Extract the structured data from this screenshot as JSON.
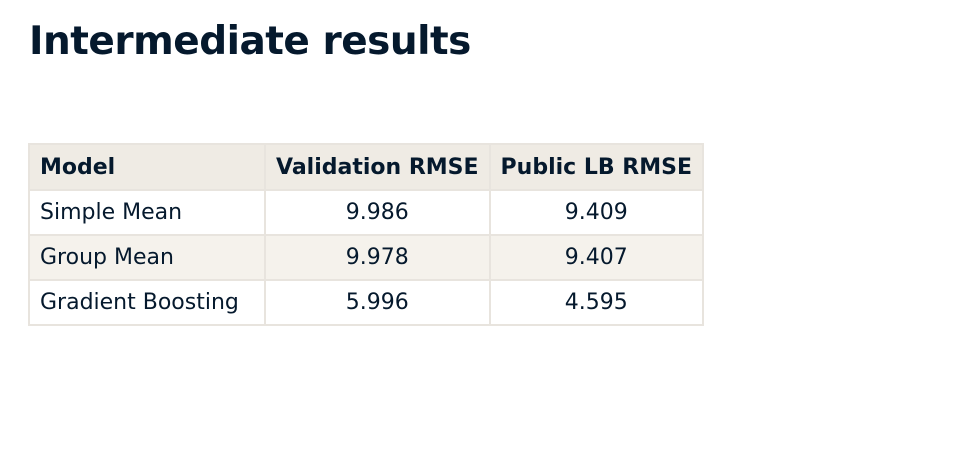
{
  "title": "Intermediate results",
  "table": {
    "headers": [
      "Model",
      "Validation RMSE",
      "Public LB RMSE"
    ],
    "rows": [
      [
        "Simple Mean",
        "9.986",
        "9.409"
      ],
      [
        "Group Mean",
        "9.978",
        "9.407"
      ],
      [
        "Gradient Boosting",
        "5.996",
        "4.595"
      ]
    ]
  },
  "colors": {
    "text": "#05192d",
    "header_bg": "#efebe4",
    "stripe_bg": "#f5f2ec",
    "border": "#e8e4de"
  }
}
